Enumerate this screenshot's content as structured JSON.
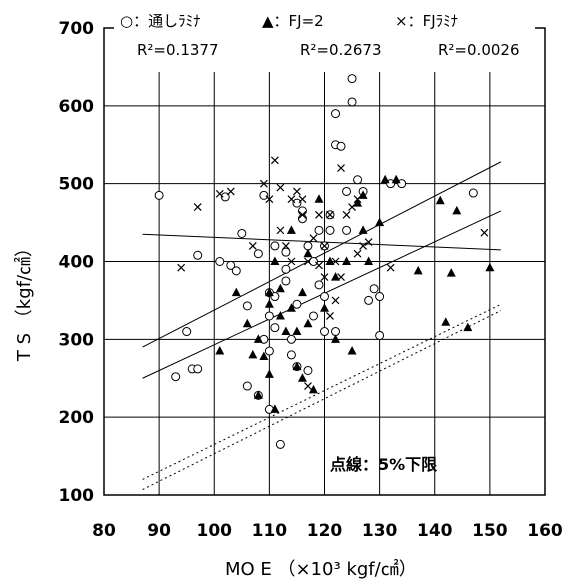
{
  "chart_data": {
    "type": "scatter",
    "xlabel": "MO E （×10³ kgf/㎠）",
    "ylabel": "T S （kgf/㎠）",
    "xlim": [
      80,
      160
    ],
    "ylim": [
      100,
      700
    ],
    "x_ticks": [
      80,
      90,
      100,
      110,
      120,
      130,
      140,
      150,
      160
    ],
    "y_ticks": [
      100,
      200,
      300,
      400,
      500,
      600,
      700
    ],
    "grid": true,
    "legend_position": "top",
    "annotation": "点線：5%下限",
    "series": [
      {
        "name": "通しﾗﾐﾅ",
        "legend_label": "○：通しﾗﾐﾅ",
        "marker": "circle",
        "r2_label": "R²=0.1377",
        "points": [
          [
            90,
            485
          ],
          [
            93,
            252
          ],
          [
            95,
            310
          ],
          [
            96,
            262
          ],
          [
            97,
            408
          ],
          [
            97,
            262
          ],
          [
            101,
            400
          ],
          [
            102,
            483
          ],
          [
            103,
            395
          ],
          [
            104,
            388
          ],
          [
            105,
            436
          ],
          [
            106,
            343
          ],
          [
            106,
            240
          ],
          [
            108,
            228
          ],
          [
            108,
            410
          ],
          [
            109,
            300
          ],
          [
            109,
            485
          ],
          [
            110,
            360
          ],
          [
            110,
            330
          ],
          [
            110,
            285
          ],
          [
            110,
            210
          ],
          [
            111,
            420
          ],
          [
            111,
            355
          ],
          [
            111,
            315
          ],
          [
            112,
            165
          ],
          [
            113,
            412
          ],
          [
            113,
            390
          ],
          [
            113,
            375
          ],
          [
            114,
            300
          ],
          [
            114,
            280
          ],
          [
            115,
            345
          ],
          [
            115,
            475
          ],
          [
            115,
            265
          ],
          [
            116,
            465
          ],
          [
            116,
            455
          ],
          [
            117,
            420
          ],
          [
            117,
            260
          ],
          [
            118,
            400
          ],
          [
            118,
            330
          ],
          [
            119,
            440
          ],
          [
            119,
            370
          ],
          [
            120,
            420
          ],
          [
            120,
            355
          ],
          [
            120,
            310
          ],
          [
            121,
            460
          ],
          [
            121,
            440
          ],
          [
            122,
            550
          ],
          [
            122,
            590
          ],
          [
            122,
            310
          ],
          [
            123,
            548
          ],
          [
            124,
            490
          ],
          [
            124,
            440
          ],
          [
            125,
            635
          ],
          [
            125,
            605
          ],
          [
            126,
            505
          ],
          [
            127,
            490
          ],
          [
            128,
            350
          ],
          [
            129,
            365
          ],
          [
            130,
            355
          ],
          [
            130,
            305
          ],
          [
            132,
            500
          ],
          [
            134,
            500
          ],
          [
            147,
            488
          ]
        ]
      },
      {
        "name": "FJ=2",
        "legend_label": "▲：FJ=2",
        "marker": "triangle",
        "r2_label": "R²=0.2673",
        "points": [
          [
            101,
            285
          ],
          [
            104,
            360
          ],
          [
            106,
            320
          ],
          [
            107,
            280
          ],
          [
            108,
            228
          ],
          [
            108,
            300
          ],
          [
            109,
            278
          ],
          [
            110,
            360
          ],
          [
            110,
            345
          ],
          [
            110,
            255
          ],
          [
            111,
            400
          ],
          [
            111,
            210
          ],
          [
            112,
            365
          ],
          [
            112,
            330
          ],
          [
            113,
            310
          ],
          [
            114,
            440
          ],
          [
            114,
            340
          ],
          [
            115,
            310
          ],
          [
            115,
            265
          ],
          [
            116,
            360
          ],
          [
            116,
            250
          ],
          [
            117,
            410
          ],
          [
            117,
            320
          ],
          [
            118,
            235
          ],
          [
            119,
            480
          ],
          [
            120,
            340
          ],
          [
            121,
            400
          ],
          [
            122,
            300
          ],
          [
            122,
            380
          ],
          [
            124,
            400
          ],
          [
            125,
            285
          ],
          [
            126,
            475
          ],
          [
            127,
            485
          ],
          [
            127,
            440
          ],
          [
            128,
            400
          ],
          [
            130,
            450
          ],
          [
            131,
            505
          ],
          [
            133,
            505
          ],
          [
            137,
            388
          ],
          [
            141,
            478
          ],
          [
            142,
            322
          ],
          [
            143,
            385
          ],
          [
            144,
            465
          ],
          [
            146,
            315
          ],
          [
            150,
            392
          ]
        ]
      },
      {
        "name": "FJﾗﾐﾅ",
        "legend_label": "×：FJﾗﾐﾅ",
        "marker": "cross",
        "r2_label": "R²=0.0026",
        "points": [
          [
            94,
            392
          ],
          [
            97,
            470
          ],
          [
            101,
            487
          ],
          [
            103,
            490
          ],
          [
            107,
            420
          ],
          [
            109,
            500
          ],
          [
            110,
            480
          ],
          [
            111,
            530
          ],
          [
            112,
            495
          ],
          [
            112,
            440
          ],
          [
            113,
            420
          ],
          [
            114,
            480
          ],
          [
            114,
            400
          ],
          [
            115,
            490
          ],
          [
            116,
            480
          ],
          [
            116,
            460
          ],
          [
            117,
            400
          ],
          [
            117,
            240
          ],
          [
            118,
            430
          ],
          [
            119,
            460
          ],
          [
            119,
            395
          ],
          [
            120,
            420
          ],
          [
            120,
            380
          ],
          [
            121,
            460
          ],
          [
            121,
            330
          ],
          [
            122,
            400
          ],
          [
            122,
            350
          ],
          [
            123,
            520
          ],
          [
            123,
            380
          ],
          [
            124,
            460
          ],
          [
            125,
            470
          ],
          [
            126,
            480
          ],
          [
            126,
            410
          ],
          [
            127,
            420
          ],
          [
            128,
            425
          ],
          [
            132,
            392
          ],
          [
            149,
            437
          ]
        ]
      }
    ],
    "regression_lines": [
      {
        "series": "通しﾗﾐﾅ",
        "x": [
          87,
          152
        ],
        "y": [
          290,
          528
        ],
        "style": "solid"
      },
      {
        "series": "FJ=2",
        "x": [
          87,
          152
        ],
        "y": [
          250,
          465
        ],
        "style": "solid"
      },
      {
        "series": "FJﾗﾐﾅ",
        "x": [
          87,
          152
        ],
        "y": [
          435,
          415
        ],
        "style": "solid"
      }
    ],
    "lower_limit_lines": [
      {
        "x": [
          87,
          152
        ],
        "y": [
          120,
          345
        ],
        "style": "dotted"
      },
      {
        "x": [
          87,
          152
        ],
        "y": [
          107,
          337
        ],
        "style": "dotted"
      }
    ]
  }
}
